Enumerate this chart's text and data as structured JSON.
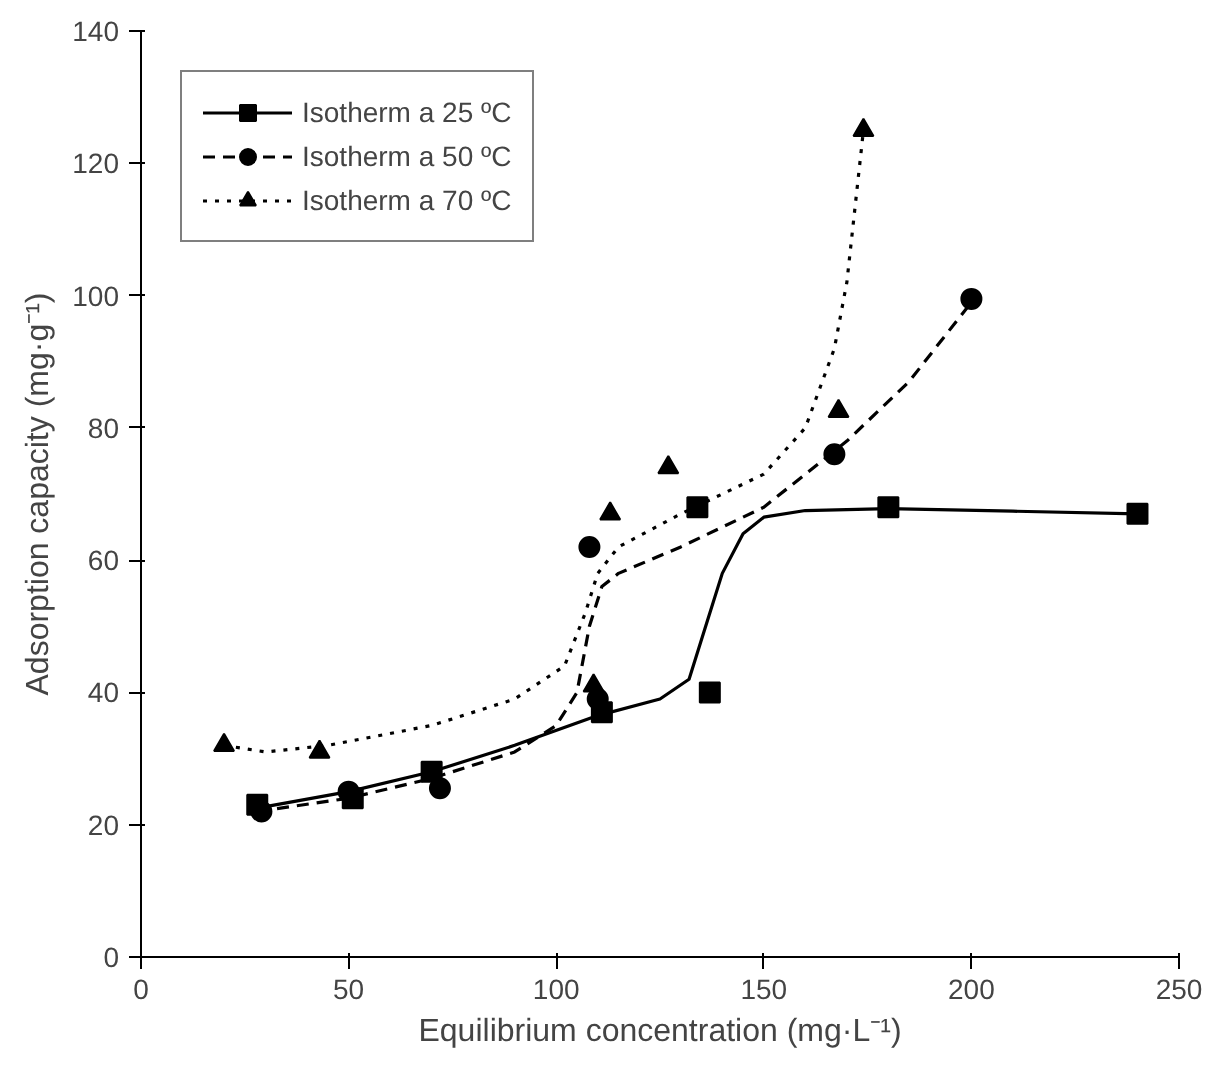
{
  "chart_data": {
    "type": "scatter",
    "xlabel": "Equilibrium concentration (mg·L⁻¹)",
    "ylabel": "Adsorption capacity (mg·g⁻¹)",
    "xlim": [
      0,
      250
    ],
    "ylim": [
      0,
      140
    ],
    "xticks": [
      0,
      50,
      100,
      150,
      200,
      250
    ],
    "yticks": [
      0,
      20,
      40,
      60,
      80,
      100,
      120,
      140
    ],
    "grid": false,
    "legend": "top left",
    "series": [
      {
        "name": "Isotherm a 25 ºC",
        "marker": "square",
        "color": "#000000",
        "x": [
          28,
          51,
          70,
          111,
          134,
          137,
          180,
          240
        ],
        "values": [
          23,
          24,
          28,
          37,
          68,
          40,
          68,
          67
        ]
      },
      {
        "name": "Isotherm a 50 ºC",
        "marker": "circle",
        "color": "#000000",
        "x": [
          29,
          50,
          72,
          108,
          110,
          167,
          200
        ],
        "values": [
          22,
          25,
          25.5,
          62,
          39,
          76,
          99.5
        ]
      },
      {
        "name": "Isotherm a 70 ºC",
        "marker": "triangle",
        "color": "#000000",
        "x": [
          20,
          43,
          109,
          113,
          127,
          168,
          174
        ],
        "values": [
          32,
          31,
          41,
          67,
          74,
          82.5,
          125
        ]
      },
      {
        "type": "line",
        "line_style": "solid",
        "color": "#000000",
        "x": [
          28,
          50,
          70,
          90,
          110,
          125,
          132,
          136,
          140,
          145,
          150,
          160,
          180,
          210,
          240
        ],
        "values": [
          22.5,
          25,
          28,
          32,
          36.5,
          39,
          42,
          50,
          58,
          64,
          66.5,
          67.5,
          67.8,
          67.4,
          67
        ]
      },
      {
        "type": "line",
        "line_style": "dashed",
        "color": "#000000",
        "x": [
          28,
          50,
          70,
          90,
          100,
          105,
          108,
          111,
          115,
          130,
          150,
          170,
          185,
          200
        ],
        "values": [
          22,
          24,
          27,
          31,
          35,
          40,
          50,
          56,
          58,
          62,
          68,
          78,
          87,
          99
        ]
      },
      {
        "type": "line",
        "line_style": "dotted",
        "color": "#000000",
        "x": [
          20,
          30,
          45,
          70,
          90,
          102,
          107,
          110,
          115,
          130,
          150,
          160,
          167,
          170,
          174
        ],
        "values": [
          32,
          31,
          32,
          35,
          39,
          44,
          52,
          58,
          62,
          67,
          73,
          80,
          92,
          102,
          125
        ]
      }
    ]
  }
}
